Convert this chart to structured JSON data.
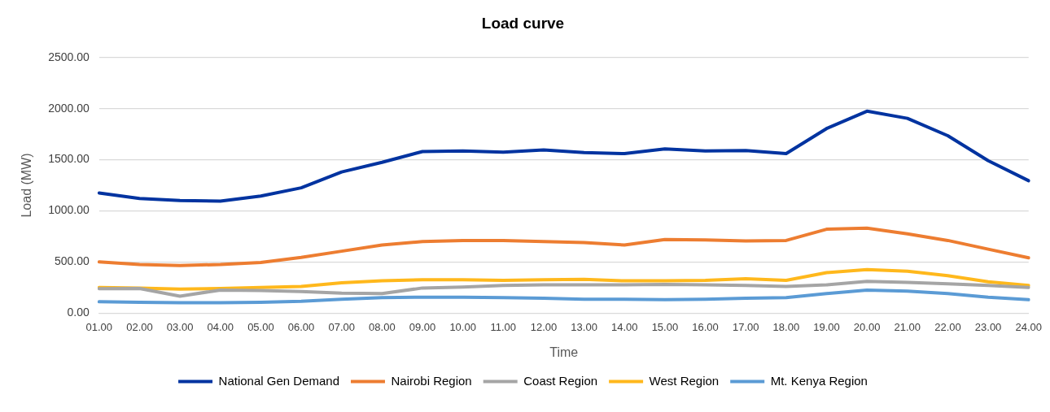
{
  "chart_data": {
    "type": "line",
    "title": "Load curve",
    "xlabel": "Time",
    "ylabel": "Load (MW)",
    "categories": [
      "01.00",
      "02.00",
      "03.00",
      "04.00",
      "05.00",
      "06.00",
      "07.00",
      "08.00",
      "09.00",
      "10.00",
      "11.00",
      "12.00",
      "13.00",
      "14.00",
      "15.00",
      "16.00",
      "17.00",
      "18.00",
      "19.00",
      "20.00",
      "21.00",
      "22.00",
      "23.00",
      "24.00"
    ],
    "series": [
      {
        "name": "National Gen Demand",
        "color": "#0033a0",
        "values": [
          1175,
          1120,
          1100,
          1095,
          1145,
          1225,
          1380,
          1475,
          1580,
          1585,
          1575,
          1595,
          1570,
          1560,
          1605,
          1585,
          1590,
          1560,
          1805,
          1975,
          1905,
          1735,
          1490,
          1295
        ]
      },
      {
        "name": "Nairobi Region",
        "color": "#ed7d31",
        "values": [
          500,
          475,
          465,
          475,
          495,
          545,
          605,
          665,
          700,
          710,
          710,
          700,
          690,
          665,
          720,
          715,
          705,
          710,
          820,
          830,
          775,
          710,
          625,
          540
        ]
      },
      {
        "name": "Coast Region",
        "color": "#a5a5a5",
        "values": [
          238,
          240,
          165,
          225,
          220,
          210,
          195,
          190,
          245,
          255,
          270,
          275,
          275,
          275,
          280,
          275,
          270,
          260,
          275,
          310,
          300,
          285,
          270,
          250
        ]
      },
      {
        "name": "West Region",
        "color": "#ffb81c",
        "values": [
          250,
          245,
          235,
          240,
          250,
          260,
          295,
          315,
          325,
          325,
          320,
          325,
          330,
          315,
          315,
          320,
          335,
          320,
          395,
          425,
          410,
          365,
          305,
          270
        ]
      },
      {
        "name": "Mt. Kenya Region",
        "color": "#5b9bd5",
        "values": [
          110,
          105,
          100,
          100,
          105,
          115,
          135,
          150,
          155,
          155,
          150,
          145,
          135,
          135,
          130,
          135,
          145,
          150,
          190,
          225,
          215,
          190,
          155,
          130
        ]
      }
    ],
    "ylim": [
      0,
      2500
    ],
    "yticks": [
      {
        "value": 0,
        "label": "0.00"
      },
      {
        "value": 500,
        "label": "500.00"
      },
      {
        "value": 1000,
        "label": "1000.00"
      },
      {
        "value": 1500,
        "label": "1500.00"
      },
      {
        "value": 2000,
        "label": "2000.00"
      },
      {
        "value": 2500,
        "label": "2500.00"
      }
    ],
    "grid": "y",
    "legend": "bottom",
    "marker": "none",
    "line_style": "solid"
  }
}
